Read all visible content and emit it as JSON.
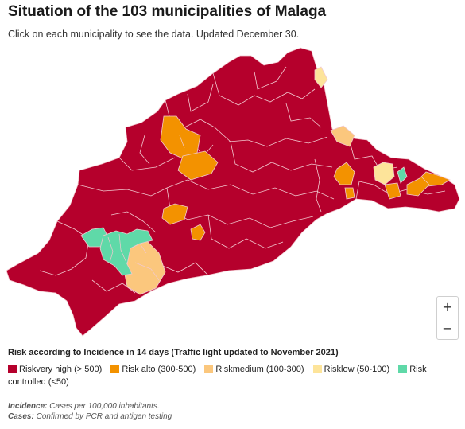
{
  "header": {
    "title": "Situation of the 103 municipalities of Malaga",
    "subtitle": "Click on each municipality to see the data. Updated December 30."
  },
  "colors": {
    "very_high": "#b5002c",
    "alto": "#f39200",
    "medium": "#fbc77d",
    "low": "#fde49a",
    "controlled": "#5fd9a8",
    "border": "#f2c9d0"
  },
  "zoom": {
    "in_label": "+",
    "out_label": "−"
  },
  "legend": {
    "title": "Risk according to Incidence in 14 days (Traffic light updated to November 2021)",
    "items": [
      {
        "label": "Riskvery high (> 500)",
        "color": "#b5002c"
      },
      {
        "label": "Risk alto (300-500)",
        "color": "#f39200"
      },
      {
        "label": "Riskmedium (100-300)",
        "color": "#fbc77d"
      },
      {
        "label": "Risklow (50-100)",
        "color": "#fde49a"
      },
      {
        "label": "Risk controlled (<50)",
        "color": "#5fd9a8"
      }
    ]
  },
  "notes": {
    "incidence_label": "Incidence:",
    "incidence_text": "Cases per 100,000 inhabitants.",
    "cases_label": "Cases:",
    "cases_text": "Confirmed by PCR and antigen testing"
  }
}
